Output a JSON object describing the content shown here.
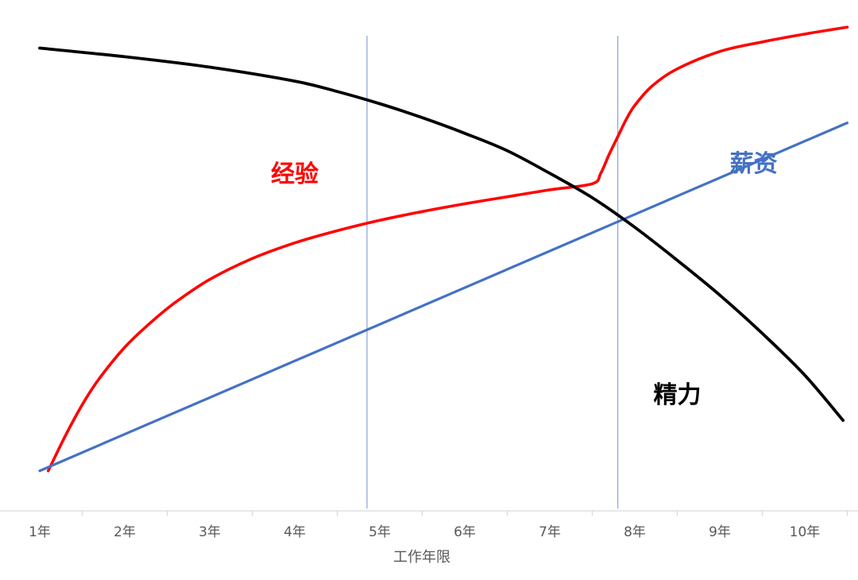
{
  "chart_data": {
    "type": "line",
    "title": "",
    "xlabel": "工作年限",
    "ylabel": "",
    "categories": [
      "1年",
      "2年",
      "3年",
      "4年",
      "5年",
      "6年",
      "7年",
      "8年",
      "9年",
      "10年"
    ],
    "x_range": [
      1,
      10.5
    ],
    "grid": false,
    "reference_lines_x": [
      4.85,
      7.8
    ],
    "series": [
      {
        "name": "经验",
        "color": "#ff0000",
        "x": [
          1.1,
          1.3,
          1.5,
          1.7,
          2.0,
          2.3,
          2.6,
          3.0,
          3.5,
          4.0,
          4.5,
          5.0,
          5.5,
          6.0,
          6.5,
          7.0,
          7.5,
          7.6,
          7.7,
          7.8,
          7.9,
          8.0,
          8.2,
          8.5,
          9.0,
          9.5,
          10.0,
          10.5
        ],
        "values": [
          0.2,
          2.2,
          4.0,
          5.5,
          7.3,
          8.7,
          9.9,
          11.2,
          12.4,
          13.3,
          14.0,
          14.6,
          15.1,
          15.55,
          15.95,
          16.35,
          16.7,
          17.3,
          18.4,
          19.4,
          20.4,
          21.2,
          22.3,
          23.3,
          24.3,
          24.85,
          25.3,
          25.7
        ]
      },
      {
        "name": "薪资",
        "color": "#4472c4",
        "x": [
          1.0,
          10.5
        ],
        "values": [
          0.2,
          20.2
        ]
      },
      {
        "name": "精力",
        "color": "#000000",
        "x": [
          1.0,
          2.0,
          3.0,
          4.0,
          4.5,
          5.0,
          5.5,
          6.0,
          6.5,
          7.0,
          7.5,
          8.0,
          8.5,
          9.0,
          9.5,
          10.0,
          10.45
        ],
        "values": [
          24.5,
          24.0,
          23.4,
          22.6,
          22.0,
          21.3,
          20.5,
          19.6,
          18.6,
          17.3,
          15.9,
          14.2,
          12.3,
          10.3,
          8.1,
          5.7,
          3.1
        ]
      }
    ],
    "annotations": [
      {
        "text": "经验",
        "color": "#ff0000",
        "x": 4.0,
        "y": 16.8
      },
      {
        "text": "薪资",
        "color": "#4472c4",
        "x": 9.4,
        "y": 17.4
      },
      {
        "text": "精力",
        "color": "#000000",
        "x": 8.5,
        "y": 4.1
      }
    ]
  }
}
